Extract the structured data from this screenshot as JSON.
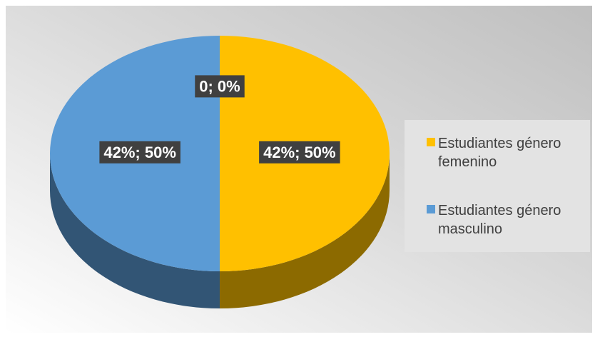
{
  "chart_data": {
    "type": "pie",
    "categories": [
      "Estudiantes género femenino",
      "Estudiantes género masculino",
      null
    ],
    "values": [
      42,
      42,
      0
    ],
    "value_labels": [
      "42%; 50%",
      "42%; 50%",
      "0; 0%"
    ],
    "colors": [
      "#FFC000",
      "#5B9BD5"
    ],
    "legend": "right"
  }
}
